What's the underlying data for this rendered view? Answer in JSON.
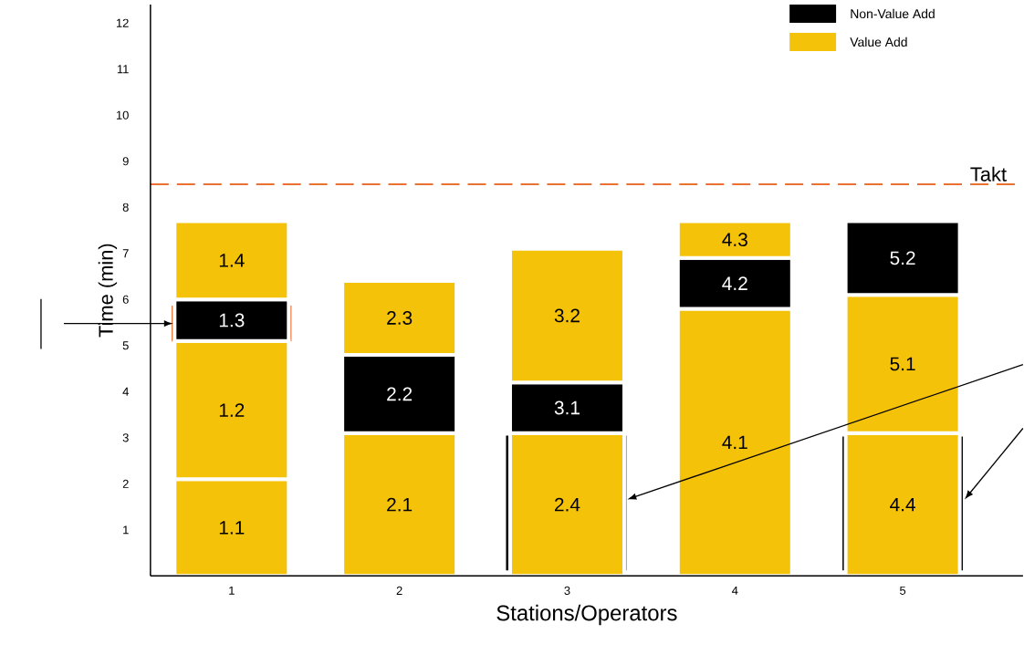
{
  "chart_data": {
    "type": "bar",
    "stacked": true,
    "xlabel": "Stations/Operators",
    "ylabel": "Time (min)",
    "categories": [
      "1",
      "2",
      "3",
      "4",
      "5"
    ],
    "series": [
      {
        "name": "Value Add",
        "color": "#f5c20a",
        "values": [
          2.1,
          3.1,
          3.1,
          5.8,
          3.1
        ]
      },
      {
        "name": "Non-Value Add",
        "color": "#000000",
        "values": [
          null,
          1.7,
          1.1,
          1.1,
          null
        ]
      },
      {
        "color": "#f5c20a",
        "values": [
          3.0,
          null,
          null,
          null,
          3.0
        ]
      },
      {
        "color": "#000000",
        "values": [
          0.9,
          null,
          null,
          null,
          1.6
        ]
      },
      {
        "color": "#f5c20a",
        "values": [
          1.7,
          1.6,
          2.9,
          0.8,
          null
        ]
      }
    ],
    "annotations": [
      "1.1",
      "1.2",
      "1.3",
      "1.4",
      "2.1",
      "2.2",
      "2.3",
      "2.4",
      "3.1",
      "3.2",
      "4.1",
      "4.2",
      "4.3",
      "4.4",
      "5.1",
      "5.2"
    ],
    "ylim": [
      0,
      12.4
    ],
    "yticks": [
      1,
      2,
      3,
      4,
      5,
      6,
      7,
      8,
      9,
      10,
      11,
      12
    ],
    "ref_lines": [
      {
        "axis": "y",
        "value": 8.5,
        "label": "Takt",
        "color": "#e97132",
        "line_style": "dashed"
      }
    ],
    "legend": "top right"
  }
}
